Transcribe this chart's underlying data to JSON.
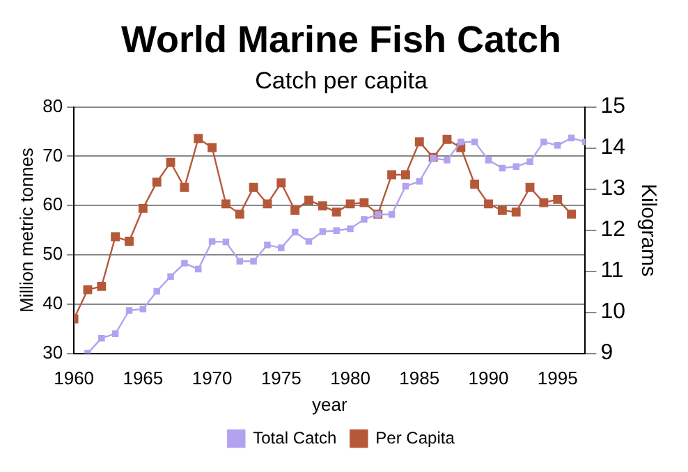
{
  "chart_data": {
    "type": "line",
    "title": "World Marine Fish Catch",
    "subtitle": "Catch per capita",
    "xlabel": "year",
    "ylabel": "Million metric tonnes",
    "y2label": "Kilograms",
    "x": [
      1960,
      1961,
      1962,
      1963,
      1964,
      1965,
      1966,
      1967,
      1968,
      1969,
      1970,
      1971,
      1972,
      1973,
      1974,
      1975,
      1976,
      1977,
      1978,
      1979,
      1980,
      1981,
      1982,
      1983,
      1984,
      1985,
      1986,
      1987,
      1988,
      1989,
      1990,
      1991,
      1992,
      1993,
      1994,
      1995,
      1996,
      1997
    ],
    "series": [
      {
        "name": "Total Catch",
        "color": "#b3a2f0",
        "values": [
          null,
          30,
          33.1,
          34,
          38.7,
          39,
          42.6,
          45.6,
          48.3,
          47.1,
          52.7,
          52.6,
          48.7,
          48.7,
          52,
          51.4,
          54.6,
          52.7,
          54.7,
          54.9,
          55.3,
          57.2,
          58.2,
          58.2,
          63.9,
          64.9,
          69.6,
          69.2,
          72.9,
          72.9,
          69.2,
          67.6,
          67.9,
          68.9,
          72.9,
          72.2,
          73.7,
          72.9
        ]
      },
      {
        "name": "Per Capita",
        "color": "#b5583a",
        "axis": "y2",
        "values": [
          9.84,
          10.55,
          10.63,
          11.84,
          11.73,
          12.53,
          13.17,
          13.65,
          13.04,
          14.23,
          14.01,
          12.64,
          12.39,
          13.04,
          12.64,
          13.15,
          12.48,
          12.73,
          12.59,
          12.44,
          12.64,
          12.67,
          12.39,
          13.35,
          13.35,
          14.15,
          13.77,
          14.21,
          14.01,
          13.12,
          12.64,
          12.48,
          12.44,
          13.04,
          12.67,
          12.75,
          12.39,
          null
        ]
      }
    ],
    "xlim": [
      1960,
      1997
    ],
    "xticks": [
      1960,
      1965,
      1970,
      1975,
      1980,
      1985,
      1990,
      1995
    ],
    "ylim": [
      30,
      80
    ],
    "yticks": [
      30,
      40,
      50,
      60,
      70,
      80
    ],
    "y2lim": [
      9,
      15
    ],
    "y2ticks": [
      9,
      10,
      11,
      12,
      13,
      14,
      15
    ],
    "grid": "y",
    "legend": "bottom",
    "marker": "square",
    "line_style": "solid"
  }
}
